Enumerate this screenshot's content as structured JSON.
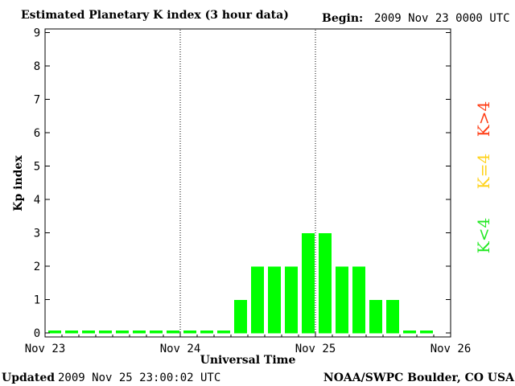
{
  "chart_data": {
    "type": "bar",
    "title": "Estimated Planetary K index (3 hour data)",
    "begin_label": "Begin:",
    "begin_value": "2009 Nov 23 0000 UTC",
    "ylabel": "Kp index",
    "xlabel": "Universal Time",
    "ylim": [
      0,
      9
    ],
    "yticks": [
      "0",
      "1",
      "2",
      "3",
      "4",
      "5",
      "6",
      "7",
      "8",
      "9"
    ],
    "xticks": [
      "Nov 23",
      "Nov 24",
      "Nov 25",
      "Nov 26"
    ],
    "grid": "vertical dotted day separators",
    "bar_color": "#00ff00",
    "series": [
      {
        "values": [
          0,
          0,
          0,
          0,
          0,
          0,
          0,
          0,
          0,
          0,
          0,
          1,
          2,
          2,
          2,
          3,
          3,
          2,
          2,
          1,
          1,
          0,
          0
        ]
      }
    ],
    "legend": [
      {
        "label": "K<4",
        "color": "#22e822"
      },
      {
        "label": "K=4",
        "color": "#ffd21a"
      },
      {
        "label": "K>4",
        "color": "#ff3c14"
      }
    ]
  },
  "footer": {
    "updated_label": "Updated",
    "updated_value": "2009 Nov 25 23:00:02 UTC",
    "credit": "NOAA/SWPC Boulder, CO USA"
  }
}
